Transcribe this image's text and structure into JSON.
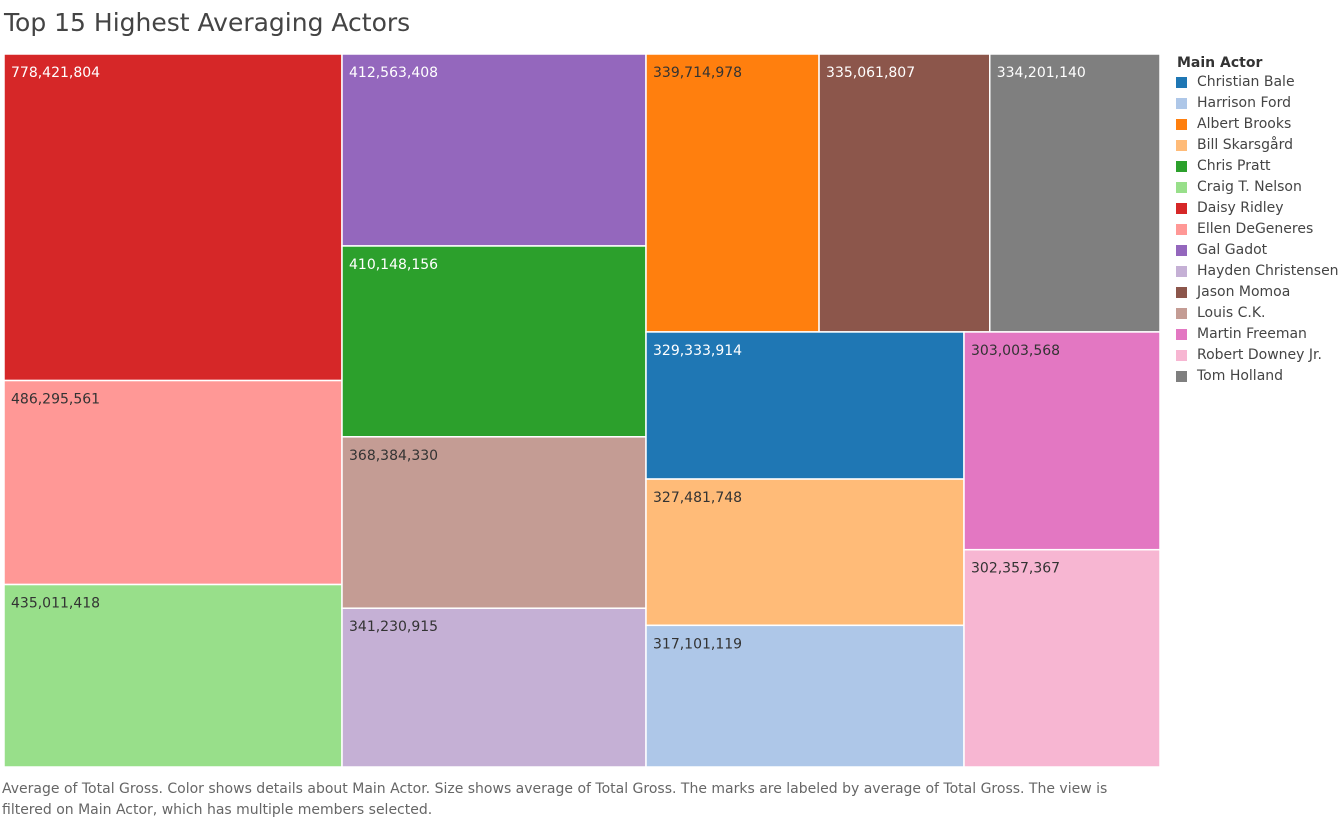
{
  "title": "Top 15 Highest Averaging Actors",
  "legend": {
    "title": "Main Actor"
  },
  "footnote": "Average of Total Gross.  Color shows details about Main Actor.  Size shows average of Total Gross.  The marks are labeled by average of Total Gross. The view is filtered on Main Actor, which has multiple members selected.",
  "chart_data": {
    "type": "treemap",
    "title": "Top 15 Highest Averaging Actors",
    "measure": "Average of Total Gross",
    "dimension": "Main Actor",
    "legend_position": "right",
    "legend_order": [
      "Christian Bale",
      "Harrison Ford",
      "Albert Brooks",
      "Bill Skarsgård",
      "Chris Pratt",
      "Craig T. Nelson",
      "Daisy Ridley",
      "Ellen DeGeneres",
      "Gal Gadot",
      "Hayden Christensen",
      "Jason Momoa",
      "Louis C.K.",
      "Martin Freeman",
      "Robert Downey Jr.",
      "Tom Holland"
    ],
    "items": [
      {
        "name": "Daisy Ridley",
        "value": 778421804,
        "label": "778,421,804",
        "color": "#d62728",
        "label_color": "#ffffff"
      },
      {
        "name": "Ellen DeGeneres",
        "value": 486295561,
        "label": "486,295,561",
        "color": "#ff9896",
        "label_color": "#333333"
      },
      {
        "name": "Craig T. Nelson",
        "value": 435011418,
        "label": "435,011,418",
        "color": "#98df8a",
        "label_color": "#333333"
      },
      {
        "name": "Gal Gadot",
        "value": 412563408,
        "label": "412,563,408",
        "color": "#9467bd",
        "label_color": "#ffffff"
      },
      {
        "name": "Chris Pratt",
        "value": 410148156,
        "label": "410,148,156",
        "color": "#2ca02c",
        "label_color": "#ffffff"
      },
      {
        "name": "Louis C.K.",
        "value": 368384330,
        "label": "368,384,330",
        "color": "#c49c94",
        "label_color": "#333333"
      },
      {
        "name": "Hayden Christensen",
        "value": 341230915,
        "label": "341,230,915",
        "color": "#c5b0d5",
        "label_color": "#333333"
      },
      {
        "name": "Albert Brooks",
        "value": 339714978,
        "label": "339,714,978",
        "color": "#ff7f0e",
        "label_color": "#333333"
      },
      {
        "name": "Jason Momoa",
        "value": 335061807,
        "label": "335,061,807",
        "color": "#8c564b",
        "label_color": "#ffffff"
      },
      {
        "name": "Tom Holland",
        "value": 334201140,
        "label": "334,201,140",
        "color": "#7f7f7f",
        "label_color": "#ffffff"
      },
      {
        "name": "Christian Bale",
        "value": 329333914,
        "label": "329,333,914",
        "color": "#1f77b4",
        "label_color": "#ffffff"
      },
      {
        "name": "Bill Skarsgård",
        "value": 327481748,
        "label": "327,481,748",
        "color": "#ffbb78",
        "label_color": "#333333"
      },
      {
        "name": "Harrison Ford",
        "value": 317101119,
        "label": "317,101,119",
        "color": "#aec7e8",
        "label_color": "#333333"
      },
      {
        "name": "Martin Freeman",
        "value": 303003568,
        "label": "303,003,568",
        "color": "#e377c2",
        "label_color": "#333333"
      },
      {
        "name": "Robert Downey Jr.",
        "value": 302357367,
        "label": "302,357,367",
        "color": "#f7b6d2",
        "label_color": "#333333"
      }
    ]
  }
}
